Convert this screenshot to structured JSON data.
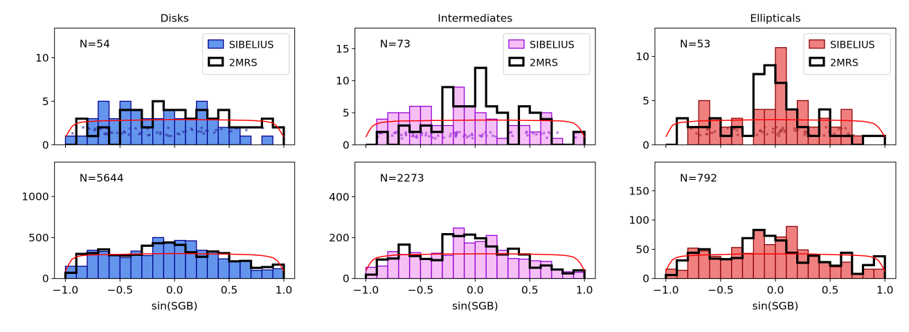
{
  "chart_data": {
    "type": "bar",
    "figure_layout": "2 rows x 3 columns of histograms",
    "bin_edges": [
      -1.0,
      -0.9,
      -0.8,
      -0.7,
      -0.6,
      -0.5,
      -0.4,
      -0.3,
      -0.2,
      -0.1,
      0.0,
      0.1,
      0.2,
      0.3,
      0.4,
      0.5,
      0.6,
      0.7,
      0.8,
      0.9,
      1.0
    ],
    "xlim": [
      -1.1,
      1.1
    ],
    "xticks": [
      -1.0,
      -0.5,
      0.0,
      0.5,
      1.0
    ],
    "xtick_labels": [
      "−1.0",
      "−0.5",
      "0.0",
      "0.5",
      "1.0"
    ],
    "xlabel": "sin(SGB)",
    "legend": {
      "placement": "top-right",
      "entries": [
        "SIBELIUS",
        "2MRS"
      ]
    },
    "columns": [
      {
        "title": "Disks",
        "fill": "#6495ED",
        "edge": "#00008B",
        "dot": "#2B2BA0",
        "fill_opacity": 1.0
      },
      {
        "title": "Intermediates",
        "fill": "#EE82EE",
        "edge": "#9400D3",
        "dot": "#9B30D8",
        "fill_opacity": 0.5
      },
      {
        "title": "Ellipticals",
        "fill": "#F08080",
        "edge": "#8B0000",
        "dot": "#A52A2A",
        "fill_opacity": 1.0
      }
    ],
    "reference_curve_color": "#FF0000",
    "outline_color": "#000000",
    "panels": [
      {
        "row": 0,
        "col": 0,
        "n_label": "N=54",
        "ylim": [
          0,
          13.4
        ],
        "yticks": [
          0,
          5,
          10
        ],
        "show_legend": true,
        "show_xtick_labels": false,
        "sibelius": [
          1,
          1,
          3,
          5,
          3,
          5,
          4,
          3,
          3,
          4,
          3,
          3,
          5,
          3,
          2,
          2,
          1,
          0,
          1,
          0
        ],
        "twomrs": [
          0,
          3,
          1,
          2,
          0,
          4,
          4,
          2,
          5,
          4,
          4,
          3,
          4,
          3,
          4,
          2,
          2,
          2,
          3,
          2
        ],
        "curve_x": [
          -1.0,
          -0.97,
          -0.94,
          -0.9,
          -0.85,
          -0.8,
          -0.7,
          -0.5,
          -0.3,
          0.0,
          0.3,
          0.5,
          0.7,
          0.8,
          0.85,
          0.9,
          0.94,
          0.97,
          1.0
        ],
        "curve_y": [
          0.9,
          1.5,
          2.1,
          2.45,
          2.6,
          2.65,
          2.75,
          2.8,
          2.85,
          2.9,
          2.88,
          2.85,
          2.8,
          2.72,
          2.65,
          2.5,
          2.1,
          1.5,
          0.9
        ],
        "dots": true
      },
      {
        "row": 0,
        "col": 1,
        "n_label": "N=73",
        "ylim": [
          0,
          18.2
        ],
        "yticks": [
          0,
          5,
          10,
          15
        ],
        "show_legend": true,
        "show_xtick_labels": false,
        "sibelius": [
          0,
          4,
          5,
          5,
          6,
          6,
          3,
          3,
          9,
          6,
          5,
          4,
          1,
          3,
          3,
          2,
          5,
          1,
          0,
          2
        ],
        "twomrs": [
          0,
          2,
          0,
          3,
          2,
          3,
          2,
          9,
          6,
          6,
          12,
          6,
          5,
          0,
          6,
          5,
          4,
          0,
          0,
          2
        ],
        "curve_x": [
          -1.0,
          -0.97,
          -0.94,
          -0.9,
          -0.85,
          -0.8,
          -0.7,
          -0.5,
          -0.3,
          0.0,
          0.3,
          0.5,
          0.7,
          0.8,
          0.85,
          0.9,
          0.94,
          0.97,
          1.0
        ],
        "curve_y": [
          1.2,
          2.2,
          2.9,
          3.3,
          3.5,
          3.6,
          3.7,
          3.75,
          3.8,
          3.85,
          3.85,
          3.8,
          3.75,
          3.7,
          3.6,
          3.4,
          2.9,
          2.2,
          1.2
        ],
        "dots": true
      },
      {
        "row": 0,
        "col": 2,
        "n_label": "N=53",
        "ylim": [
          0,
          13.2
        ],
        "yticks": [
          0,
          5,
          10
        ],
        "show_legend": true,
        "show_xtick_labels": false,
        "sibelius": [
          0,
          0,
          2,
          5,
          3,
          2,
          3,
          0,
          4,
          4,
          11,
          4,
          5,
          2,
          3,
          2,
          4,
          1,
          0,
          0
        ],
        "twomrs": [
          0,
          3,
          2,
          2,
          3,
          1,
          2,
          1,
          8,
          9,
          7,
          4,
          2,
          1,
          4,
          1,
          1,
          0,
          1,
          1
        ],
        "curve_x": [
          -1.0,
          -0.97,
          -0.94,
          -0.9,
          -0.85,
          -0.8,
          -0.7,
          -0.5,
          -0.3,
          0.0,
          0.3,
          0.5,
          0.7,
          0.8,
          0.85,
          0.9,
          0.94,
          0.97,
          1.0
        ],
        "curve_y": [
          0.9,
          1.6,
          2.2,
          2.45,
          2.55,
          2.6,
          2.7,
          2.75,
          2.8,
          2.85,
          2.8,
          2.78,
          2.72,
          2.65,
          2.55,
          2.4,
          2.0,
          1.5,
          0.9
        ],
        "dots": true
      },
      {
        "row": 1,
        "col": 0,
        "n_label": "N=5644",
        "ylim": [
          0,
          1420
        ],
        "yticks": [
          0,
          500,
          1000
        ],
        "show_legend": false,
        "show_xtick_labels": true,
        "sibelius": [
          150,
          150,
          345,
          330,
          280,
          255,
          335,
          280,
          500,
          430,
          465,
          460,
          345,
          330,
          240,
          215,
          215,
          100,
          105,
          120
        ],
        "twomrs": [
          70,
          300,
          310,
          355,
          285,
          280,
          290,
          400,
          430,
          440,
          410,
          320,
          265,
          330,
          310,
          210,
          215,
          130,
          140,
          170
        ],
        "curve_x": [
          -1.0,
          -0.97,
          -0.94,
          -0.9,
          -0.85,
          -0.8,
          -0.7,
          -0.5,
          -0.3,
          0.0,
          0.3,
          0.5,
          0.7,
          0.8,
          0.85,
          0.9,
          0.94,
          0.97,
          1.0
        ],
        "curve_y": [
          90,
          170,
          235,
          265,
          280,
          285,
          290,
          295,
          300,
          305,
          300,
          298,
          290,
          280,
          270,
          255,
          220,
          160,
          90
        ],
        "dots": false
      },
      {
        "row": 1,
        "col": 1,
        "n_label": "N=2273",
        "ylim": [
          0,
          570
        ],
        "yticks": [
          0,
          200,
          400
        ],
        "show_legend": false,
        "show_xtick_labels": true,
        "sibelius": [
          55,
          61,
          132,
          118,
          127,
          98,
          124,
          113,
          247,
          174,
          181,
          211,
          138,
          98,
          95,
          87,
          84,
          44,
          33,
          31
        ],
        "twomrs": [
          19,
          93,
          98,
          166,
          110,
          96,
          90,
          217,
          208,
          215,
          197,
          157,
          118,
          146,
          118,
          53,
          64,
          44,
          25,
          40
        ],
        "curve_x": [
          -1.0,
          -0.97,
          -0.94,
          -0.9,
          -0.85,
          -0.8,
          -0.7,
          -0.5,
          -0.3,
          0.0,
          0.3,
          0.5,
          0.7,
          0.8,
          0.85,
          0.9,
          0.94,
          0.97,
          1.0
        ],
        "curve_y": [
          38,
          68,
          90,
          102,
          108,
          111,
          116,
          118,
          120,
          121,
          121,
          119,
          117,
          114,
          111,
          105,
          90,
          68,
          38
        ],
        "dots": false
      },
      {
        "row": 1,
        "col": 2,
        "n_label": "N=792",
        "ylim": [
          0,
          199
        ],
        "yticks": [
          0,
          50,
          100,
          150
        ],
        "show_legend": false,
        "show_xtick_labels": true,
        "sibelius": [
          16,
          14,
          52,
          47,
          38,
          34,
          53,
          43,
          82,
          58,
          71,
          89,
          49,
          39,
          28,
          20,
          28,
          8,
          16,
          16
        ],
        "twomrs": [
          6,
          31,
          44,
          50,
          34,
          33,
          35,
          69,
          83,
          73,
          65,
          44,
          27,
          39,
          28,
          22,
          44,
          8,
          23,
          38
        ],
        "curve_x": [
          -1.0,
          -0.97,
          -0.94,
          -0.9,
          -0.85,
          -0.8,
          -0.7,
          -0.5,
          -0.3,
          0.0,
          0.3,
          0.5,
          0.7,
          0.8,
          0.85,
          0.9,
          0.94,
          0.97,
          1.0
        ],
        "curve_y": [
          13,
          24,
          32,
          36,
          38,
          39,
          40,
          41,
          42,
          42,
          42,
          41,
          40,
          39,
          38,
          36,
          31,
          23,
          13
        ],
        "dots": false
      }
    ]
  }
}
